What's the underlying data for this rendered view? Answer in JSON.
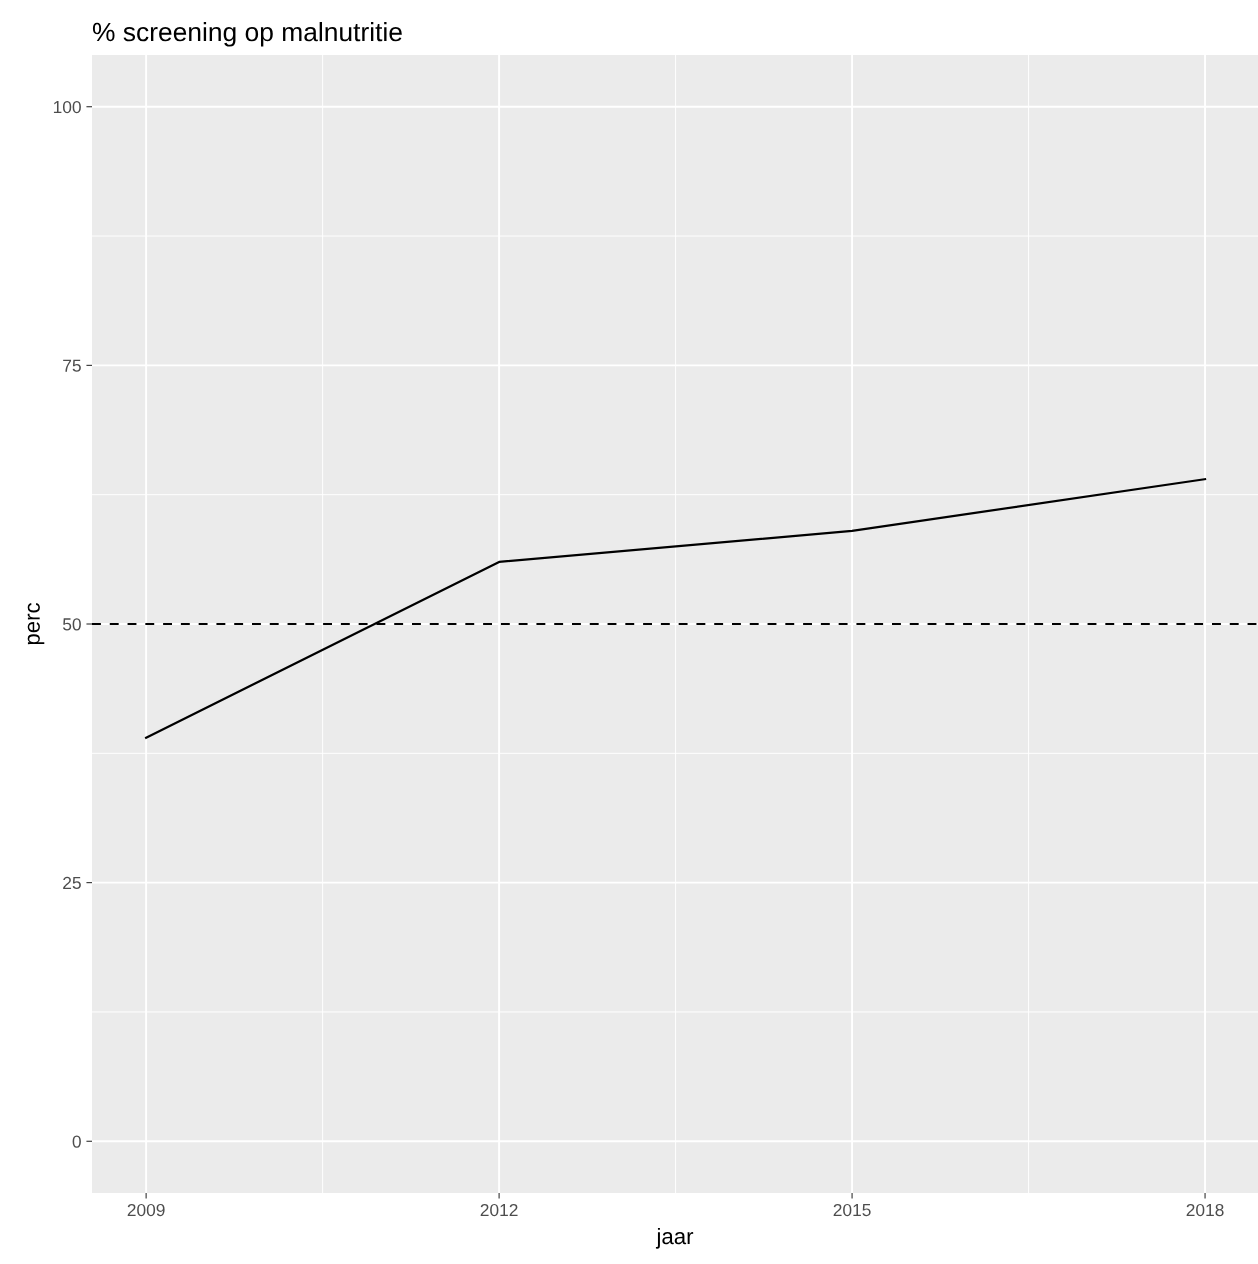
{
  "chart_data": {
    "type": "line",
    "title": "% screening op malnutritie",
    "xlabel": "jaar",
    "ylabel": "perc",
    "x": [
      2009,
      2012,
      2015,
      2018
    ],
    "series": [
      {
        "color": "#000000",
        "values": [
          39,
          56,
          59,
          64
        ]
      }
    ],
    "xlim": [
      2008.54,
      2018.45
    ],
    "xticks": [
      2009,
      2012,
      2015,
      2018
    ],
    "ylim": [
      -5,
      105
    ],
    "yticks": [
      0,
      25,
      50,
      75,
      100
    ],
    "ref_lines": [
      {
        "axis": "y",
        "value": 50,
        "color": "#000000",
        "line_style": "dashed"
      }
    ],
    "grid": true,
    "marker": "none",
    "line_style": "solid"
  }
}
